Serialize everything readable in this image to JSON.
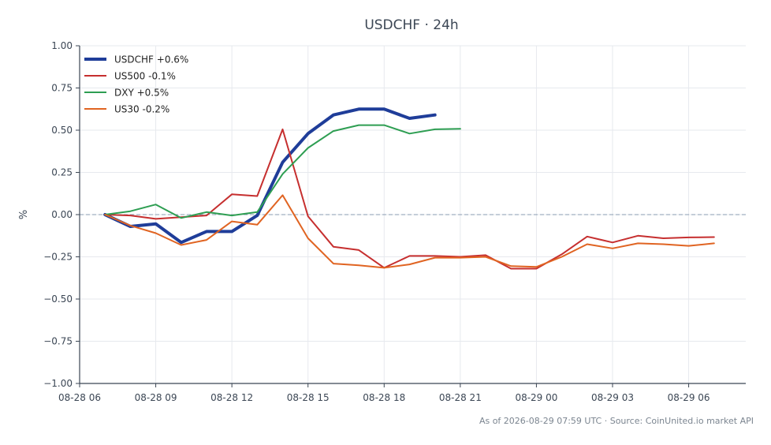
{
  "chart_data": {
    "type": "line",
    "title": "USDCHF · 24h",
    "xlabel": "",
    "ylabel": "%",
    "ylim": [
      -1.0,
      1.0
    ],
    "xlim": [
      "08-28 06:00",
      "08-29 08:15"
    ],
    "grid": true,
    "legend_position": "top-left",
    "baseline": 0,
    "x_ticks": [
      "08-28 06",
      "08-28 09",
      "08-28 12",
      "08-28 15",
      "08-28 18",
      "08-28 21",
      "08-29 00",
      "08-29 03",
      "08-29 06"
    ],
    "y_ticks": [
      "1.00",
      "0.75",
      "0.50",
      "0.25",
      "0.00",
      "−0.25",
      "−0.50",
      "−0.75",
      "−1.00"
    ],
    "y_tick_values": [
      1.0,
      0.75,
      0.5,
      0.25,
      0.0,
      -0.25,
      -0.5,
      -0.75,
      -1.0
    ],
    "x_tick_values": [
      "08-28 06:00",
      "08-28 09:00",
      "08-28 12:00",
      "08-28 15:00",
      "08-28 18:00",
      "08-28 21:00",
      "08-29 00:00",
      "08-29 03:00",
      "08-29 06:00"
    ],
    "series": [
      {
        "name": "USDCHF +0.6%",
        "color": "#1f3d99",
        "x": [
          "08-28 07:00",
          "08-28 08:00",
          "08-28 09:00",
          "08-28 10:00",
          "08-28 11:00",
          "08-28 12:00",
          "08-28 13:00",
          "08-28 14:00",
          "08-28 15:00",
          "08-28 16:00",
          "08-28 17:00",
          "08-28 18:00",
          "08-28 19:00",
          "08-28 20:00"
        ],
        "values": [
          0.0,
          -0.07,
          -0.055,
          -0.165,
          -0.1,
          -0.1,
          -0.005,
          0.31,
          0.48,
          0.59,
          0.625,
          0.625,
          0.57,
          0.59
        ]
      },
      {
        "name": "US500 -0.1%",
        "color": "#c62f2f",
        "x": [
          "08-28 07:00",
          "08-28 08:00",
          "08-28 09:00",
          "08-28 10:00",
          "08-28 11:00",
          "08-28 12:00",
          "08-28 13:00",
          "08-28 14:00",
          "08-28 15:00",
          "08-28 16:00",
          "08-28 17:00",
          "08-28 18:00",
          "08-28 19:00",
          "08-28 20:00",
          "08-28 21:00",
          "08-28 22:00",
          "08-28 23:00",
          "08-29 00:00",
          "08-29 01:00",
          "08-29 02:00",
          "08-29 03:00",
          "08-29 04:00",
          "08-29 05:00",
          "08-29 06:00",
          "08-29 07:00"
        ],
        "values": [
          0.0,
          -0.005,
          -0.025,
          -0.015,
          -0.005,
          0.12,
          0.11,
          0.505,
          -0.01,
          -0.19,
          -0.21,
          -0.315,
          -0.245,
          -0.245,
          -0.25,
          -0.24,
          -0.32,
          -0.32,
          -0.235,
          -0.13,
          -0.165,
          -0.125,
          -0.14,
          -0.135,
          -0.133
        ]
      },
      {
        "name": "DXY +0.5%",
        "color": "#2e9e52",
        "x": [
          "08-28 07:00",
          "08-28 08:00",
          "08-28 09:00",
          "08-28 10:00",
          "08-28 11:00",
          "08-28 12:00",
          "08-28 13:00",
          "08-28 14:00",
          "08-28 15:00",
          "08-28 16:00",
          "08-28 17:00",
          "08-28 18:00",
          "08-28 19:00",
          "08-28 20:00",
          "08-28 21:00"
        ],
        "values": [
          0.0,
          0.02,
          0.06,
          -0.02,
          0.015,
          -0.005,
          0.015,
          0.24,
          0.395,
          0.495,
          0.53,
          0.53,
          0.48,
          0.505,
          0.508
        ]
      },
      {
        "name": "US30 -0.2%",
        "color": "#e06422",
        "x": [
          "08-28 07:00",
          "08-28 08:00",
          "08-28 09:00",
          "08-28 10:00",
          "08-28 11:00",
          "08-28 12:00",
          "08-28 13:00",
          "08-28 14:00",
          "08-28 15:00",
          "08-28 16:00",
          "08-28 17:00",
          "08-28 18:00",
          "08-28 19:00",
          "08-28 20:00",
          "08-28 21:00",
          "08-28 22:00",
          "08-28 23:00",
          "08-29 00:00",
          "08-29 01:00",
          "08-29 02:00",
          "08-29 03:00",
          "08-29 04:00",
          "08-29 05:00",
          "08-29 06:00",
          "08-29 07:00"
        ],
        "values": [
          0.0,
          -0.065,
          -0.11,
          -0.18,
          -0.15,
          -0.04,
          -0.06,
          0.115,
          -0.14,
          -0.29,
          -0.3,
          -0.315,
          -0.295,
          -0.255,
          -0.255,
          -0.25,
          -0.305,
          -0.31,
          -0.25,
          -0.175,
          -0.2,
          -0.17,
          -0.175,
          -0.185,
          -0.17
        ]
      }
    ]
  },
  "footnote": "As of 2026-08-29 07:59 UTC · Source: CoinUnited.io market API"
}
